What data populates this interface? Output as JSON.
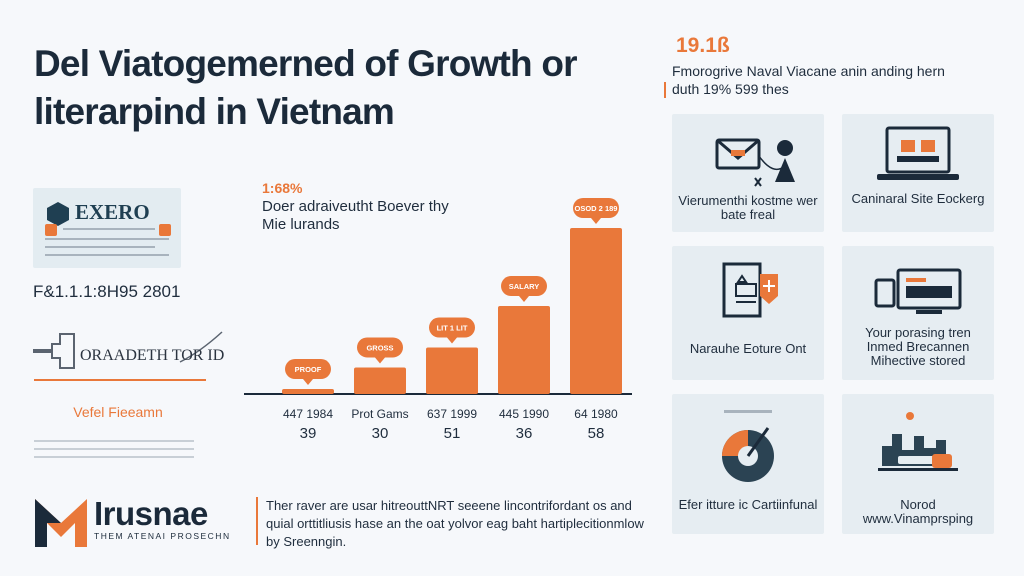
{
  "page": {
    "title": "Del Viatogemerned of Growth or literarpind in Vietnam"
  },
  "left": {
    "logo_brand": "EXERO",
    "code": "F&1.1.1:8H95 2801",
    "sketch_label": "ORAADETH TOR ID",
    "footer_label": "Vefel Fieeamn"
  },
  "chart_data": {
    "type": "bar",
    "growth_label": "1:68%",
    "subtitle": "Doer adraiveutht Boever thy Mie lurands",
    "categories": [
      "447 1984",
      "Prot Gams",
      "637 1999",
      "445 1990",
      "64 1980"
    ],
    "values": [
      39,
      30,
      51,
      36,
      58
    ],
    "value_labels": [
      "39",
      "30",
      "51",
      "36",
      "58"
    ],
    "callouts": [
      "PROOF",
      "GROSS",
      "LIT 1 LIT",
      "SALARY",
      "OSOD 2 189"
    ],
    "bar_color": "#e9783a",
    "callout_color": "#e9783a"
  },
  "bottom": {
    "brand": "Irusnae",
    "tagline": "THEM ATENAI PROSECHN",
    "blurb": "Ther raver are usar hitreouttNRT seeene lincontrifordant os and quial orttitliusis hase an the oat yolvor eag baht hartiplecitionmlow by Sreenngin."
  },
  "stat": {
    "value": "19.1ß",
    "description": "Fmorogrive Naval Viacane anin anding hern duth 19% 599 thes"
  },
  "cards": [
    {
      "label": "Vierumenthi kostme wer bate freal",
      "icon": "mail-person-icon"
    },
    {
      "label": "Caninaral Site Eockerg",
      "icon": "laptop-icon"
    },
    {
      "label": "Narauhe Eoture Ont",
      "icon": "document-shield-icon"
    },
    {
      "label": "Your porasing tren Inmed Brecannen Mihective stored",
      "icon": "monitor-icon"
    },
    {
      "label": "Efer itture ic Cartiinfunal",
      "icon": "pie-gauge-icon"
    },
    {
      "label": "Norod www.Vinamprsping",
      "icon": "city-icon"
    }
  ]
}
